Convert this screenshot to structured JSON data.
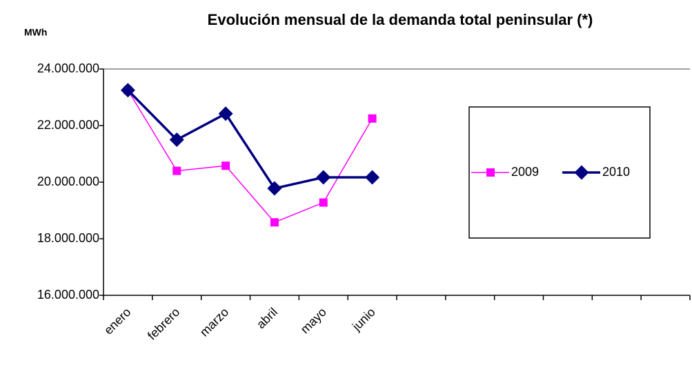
{
  "chart_data": {
    "type": "line",
    "title": "Evolución mensual de la demanda total peninsular (*)",
    "y_label": "MWh",
    "categories": [
      "enero",
      "febrero",
      "marzo",
      "abril",
      "mayo",
      "junio",
      null,
      null,
      null,
      null,
      null,
      null
    ],
    "series": [
      {
        "name": "2009",
        "color": "#ff00ff",
        "marker": "square",
        "values": [
          23250000,
          20400000,
          20580000,
          18580000,
          19280000,
          22250000,
          null,
          null,
          null,
          null,
          null,
          null
        ]
      },
      {
        "name": "2010",
        "color": "#000080",
        "marker": "diamond",
        "values": [
          23250000,
          21500000,
          22420000,
          19780000,
          20170000,
          20170000,
          null,
          null,
          null,
          null,
          null,
          null
        ]
      }
    ],
    "ylim": [
      16000000,
      24000000
    ],
    "yticks": [
      {
        "value": 16000000,
        "label": "16.000.000"
      },
      {
        "value": 18000000,
        "label": "18.000.000"
      },
      {
        "value": 20000000,
        "label": "20.000.000"
      },
      {
        "value": 22000000,
        "label": "22.000.000"
      },
      {
        "value": 24000000,
        "label": "24.000.000"
      }
    ],
    "grid": false,
    "legend": "right"
  }
}
